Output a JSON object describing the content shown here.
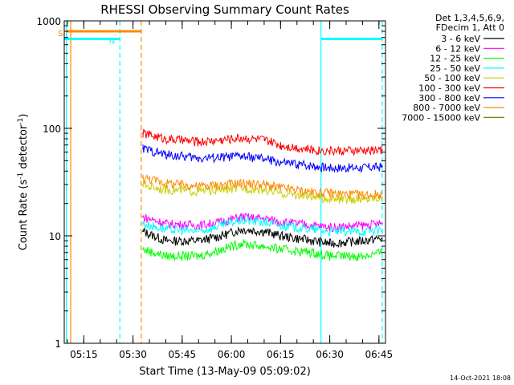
{
  "chart_data": {
    "type": "line",
    "title": "RHESSI Observing Summary Count Rates",
    "xlabel": "Start Time (13-May-09 05:09:02)",
    "ylabel": "Count Rate (s⁻¹ detector⁻¹)",
    "ylabel_parts": [
      "Count Rate (s",
      "-1",
      " detector",
      "-1",
      ")"
    ],
    "y_scale": "log",
    "ylim": [
      1,
      1000
    ],
    "xlim": [
      "05:09:02",
      "06:47:00"
    ],
    "yticks": [
      "1",
      "10",
      "100",
      "1000"
    ],
    "xticks": [
      "05:15",
      "05:30",
      "05:45",
      "06:00",
      "06:15",
      "06:30",
      "06:45"
    ],
    "legend_position": "top-right",
    "legend_header": [
      "Det 1,3,4,5,6,9,",
      "FDecim 1, Att 0"
    ],
    "series": [
      {
        "name": "3 - 6 keV",
        "color": "#000000",
        "x": [
          "05:33:00",
          "05:40:00",
          "05:50:00",
          "05:57:00",
          "06:03:00",
          "06:10:00",
          "06:15:00",
          "06:25:00",
          "06:30:00",
          "06:40:00",
          "06:46:00"
        ],
        "y": [
          11,
          9,
          9,
          10,
          11.5,
          11,
          10,
          9,
          8.5,
          9,
          9.5
        ]
      },
      {
        "name": "6 - 12 keV",
        "color": "#ff00ff",
        "x": [
          "05:33:00",
          "05:40:00",
          "05:50:00",
          "05:57:00",
          "06:03:00",
          "06:10:00",
          "06:15:00",
          "06:25:00",
          "06:30:00",
          "06:40:00",
          "06:46:00"
        ],
        "y": [
          15,
          13,
          12.5,
          13.5,
          15,
          14.5,
          13.5,
          12.5,
          12,
          12.5,
          13
        ]
      },
      {
        "name": "12 - 25 keV",
        "color": "#00ff00",
        "x": [
          "05:33:00",
          "05:40:00",
          "05:50:00",
          "05:57:00",
          "06:03:00",
          "06:10:00",
          "06:15:00",
          "06:25:00",
          "06:30:00",
          "06:40:00",
          "06:46:00"
        ],
        "y": [
          7.5,
          6.5,
          6.5,
          7.5,
          8.5,
          8,
          7.5,
          7,
          6.5,
          6.5,
          7
        ]
      },
      {
        "name": "25 - 50 keV",
        "color": "#00ffff",
        "x": [
          "05:33:00",
          "05:40:00",
          "05:50:00",
          "05:57:00",
          "06:03:00",
          "06:10:00",
          "06:15:00",
          "06:25:00",
          "06:30:00",
          "06:40:00",
          "06:46:00"
        ],
        "y": [
          13,
          11.5,
          11,
          12.5,
          14,
          13.5,
          12.5,
          11.5,
          11,
          11,
          11.5
        ]
      },
      {
        "name": "50 - 100 keV",
        "color": "#cccc00",
        "x": [
          "05:33:00",
          "05:40:00",
          "05:50:00",
          "05:57:00",
          "06:03:00",
          "06:10:00",
          "06:15:00",
          "06:25:00",
          "06:30:00",
          "06:40:00",
          "06:46:00"
        ],
        "y": [
          30,
          27,
          26,
          27,
          28,
          27,
          25,
          23,
          22,
          22,
          23
        ]
      },
      {
        "name": "100 - 300 keV",
        "color": "#ff0000",
        "x": [
          "05:33:00",
          "05:40:00",
          "05:50:00",
          "05:57:00",
          "06:03:00",
          "06:10:00",
          "06:15:00",
          "06:25:00",
          "06:30:00",
          "06:40:00",
          "06:46:00"
        ],
        "y": [
          90,
          80,
          75,
          78,
          82,
          78,
          70,
          63,
          62,
          62,
          63
        ]
      },
      {
        "name": "300 - 800 keV",
        "color": "#0000ff",
        "x": [
          "05:33:00",
          "05:40:00",
          "05:50:00",
          "05:57:00",
          "06:03:00",
          "06:10:00",
          "06:15:00",
          "06:25:00",
          "06:30:00",
          "06:40:00",
          "06:46:00"
        ],
        "y": [
          65,
          57,
          53,
          54,
          55,
          52,
          48,
          45,
          43,
          43,
          44
        ]
      },
      {
        "name": "800 - 7000 keV",
        "color": "#ff8800",
        "x": [
          "05:33:00",
          "05:40:00",
          "05:50:00",
          "05:57:00",
          "06:03:00",
          "06:10:00",
          "06:15:00",
          "06:25:00",
          "06:30:00",
          "06:40:00",
          "06:46:00"
        ],
        "y": [
          35,
          31,
          29,
          30,
          31,
          30,
          28,
          25.5,
          25,
          24,
          24.5
        ]
      },
      {
        "name": "7000 - 15000 keV",
        "color": "#808000",
        "x": [],
        "y": []
      }
    ],
    "flags": [
      {
        "label": "S",
        "color": "#ff8800",
        "start": "05:09:40",
        "end": "05:32:40",
        "level": 800
      },
      {
        "label": "N",
        "color": "#00ffff",
        "start": "05:09:02",
        "end": "05:26:00",
        "level": 680
      },
      {
        "label": "",
        "color": "#00ffff",
        "start": "06:27:20",
        "end": "06:46:00",
        "level": 680
      }
    ],
    "markers": [
      {
        "time": "05:09:40",
        "color": "#00ffff",
        "style": "solid"
      },
      {
        "time": "05:11:00",
        "color": "#ff8800",
        "style": "solid"
      },
      {
        "time": "05:26:00",
        "color": "#00ffff",
        "style": "dashed"
      },
      {
        "time": "05:32:30",
        "color": "#ff8800",
        "style": "dashed"
      },
      {
        "time": "06:27:20",
        "color": "#00ffff",
        "style": "solid"
      },
      {
        "time": "06:46:00",
        "color": "#00ffff",
        "style": "dashed"
      }
    ]
  },
  "footer": {
    "timestamp": "14-Oct-2021 18:08"
  }
}
